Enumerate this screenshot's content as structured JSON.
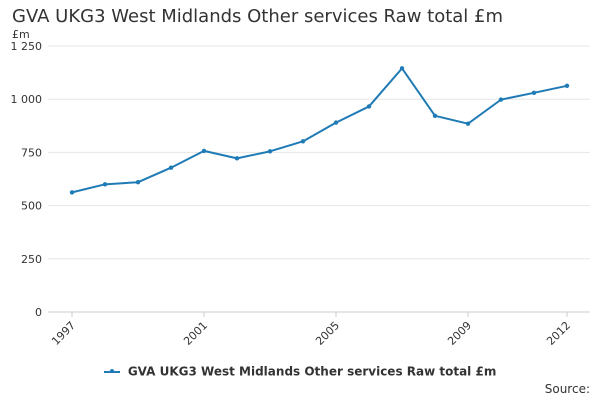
{
  "chart_data": {
    "type": "line",
    "title": "GVA UKG3 West Midlands Other services Raw total £m",
    "ylabel": "£m",
    "xlabel": "",
    "x": [
      1997,
      1998,
      1999,
      2000,
      2001,
      2002,
      2003,
      2004,
      2005,
      2006,
      2007,
      2008,
      2009,
      2010,
      2011,
      2012
    ],
    "series": [
      {
        "name": "GVA UKG3 West Midlands Other services Raw total £m",
        "color": "#1f7bb6",
        "values": [
          562,
          600,
          610,
          678,
          757,
          722,
          755,
          802,
          890,
          966,
          1145,
          922,
          885,
          998,
          1030,
          1063
        ]
      }
    ],
    "ylim": [
      0,
      1250
    ],
    "yticks": [
      0,
      250,
      500,
      750,
      1000,
      1250
    ],
    "ytick_labels": [
      "0",
      "250",
      "500",
      "750",
      "1 000",
      "1 250"
    ],
    "xticks": [
      1997,
      2001,
      2005,
      2009,
      2012
    ],
    "xtick_labels": [
      "1997",
      "2001",
      "2005",
      "2009",
      "2012"
    ],
    "legend": "bottom-center",
    "grid": true
  },
  "footer": {
    "source_label": "Source:"
  }
}
